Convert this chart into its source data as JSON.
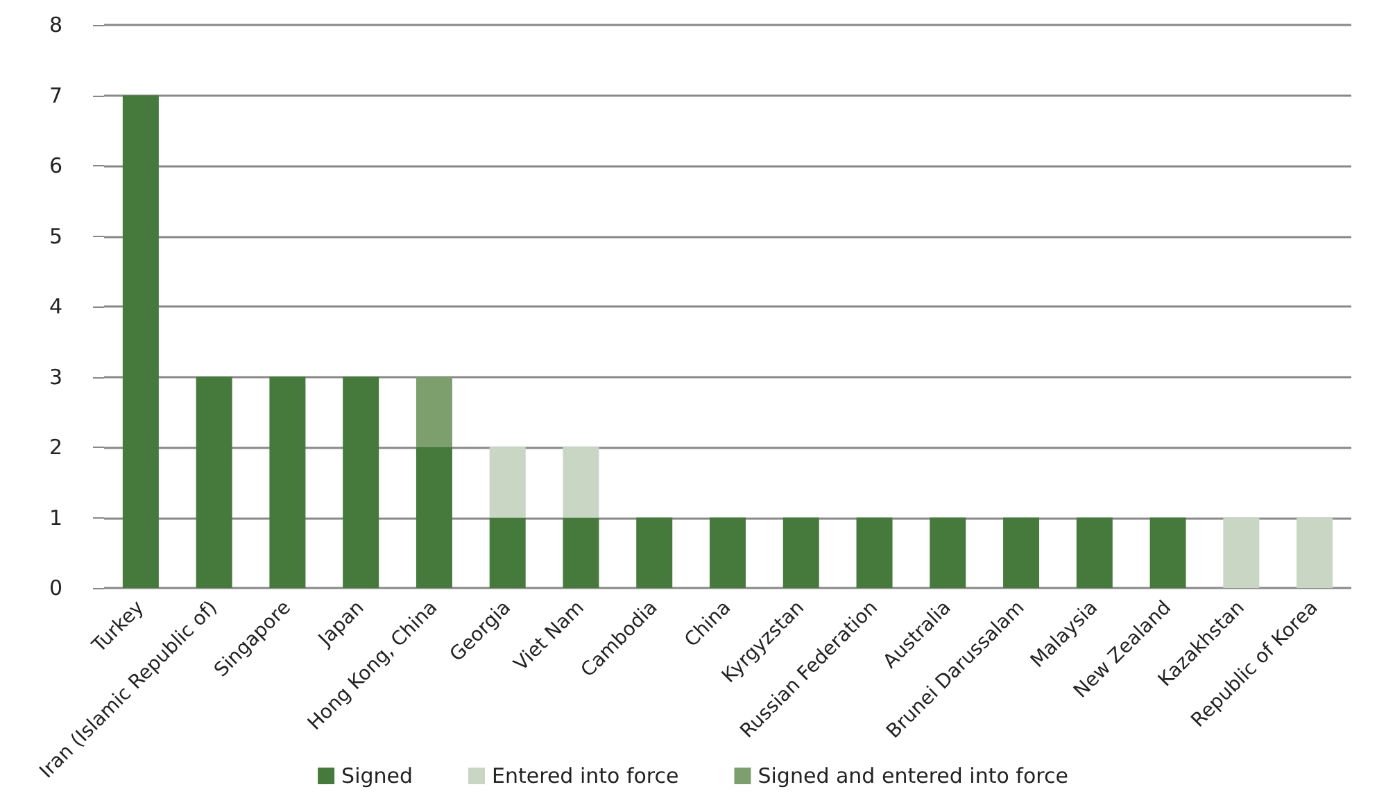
{
  "chart_data": {
    "type": "bar",
    "stacked": true,
    "categories": [
      "Turkey",
      "Iran (Islamic Republic of)",
      "Singapore",
      "Japan",
      "Hong Kong, China",
      "Georgia",
      "Viet Nam",
      "Cambodia",
      "China",
      "Kyrgyzstan",
      "Russian Federation",
      "Australia",
      "Brunei Darussalam",
      "Malaysia",
      "New Zealand",
      "Kazakhstan",
      "Republic of Korea"
    ],
    "series": [
      {
        "name": "Signed",
        "color": "#467a3c",
        "values": [
          7,
          3,
          3,
          3,
          2,
          1,
          1,
          1,
          1,
          1,
          1,
          1,
          1,
          1,
          1,
          0,
          0
        ]
      },
      {
        "name": "Entered into force",
        "color": "#c9d6c3",
        "values": [
          0,
          0,
          0,
          0,
          0,
          1,
          1,
          0,
          0,
          0,
          0,
          0,
          0,
          0,
          0,
          1,
          1
        ]
      },
      {
        "name": "Signed and entered into force",
        "color": "#7d9e6d",
        "values": [
          0,
          0,
          0,
          0,
          1,
          0,
          0,
          0,
          0,
          0,
          0,
          0,
          0,
          0,
          0,
          0,
          0
        ]
      }
    ],
    "ylim": [
      0,
      8
    ],
    "yticks": [
      0,
      1,
      2,
      3,
      4,
      5,
      6,
      7,
      8
    ],
    "grid": "y",
    "legend": "bottom"
  }
}
